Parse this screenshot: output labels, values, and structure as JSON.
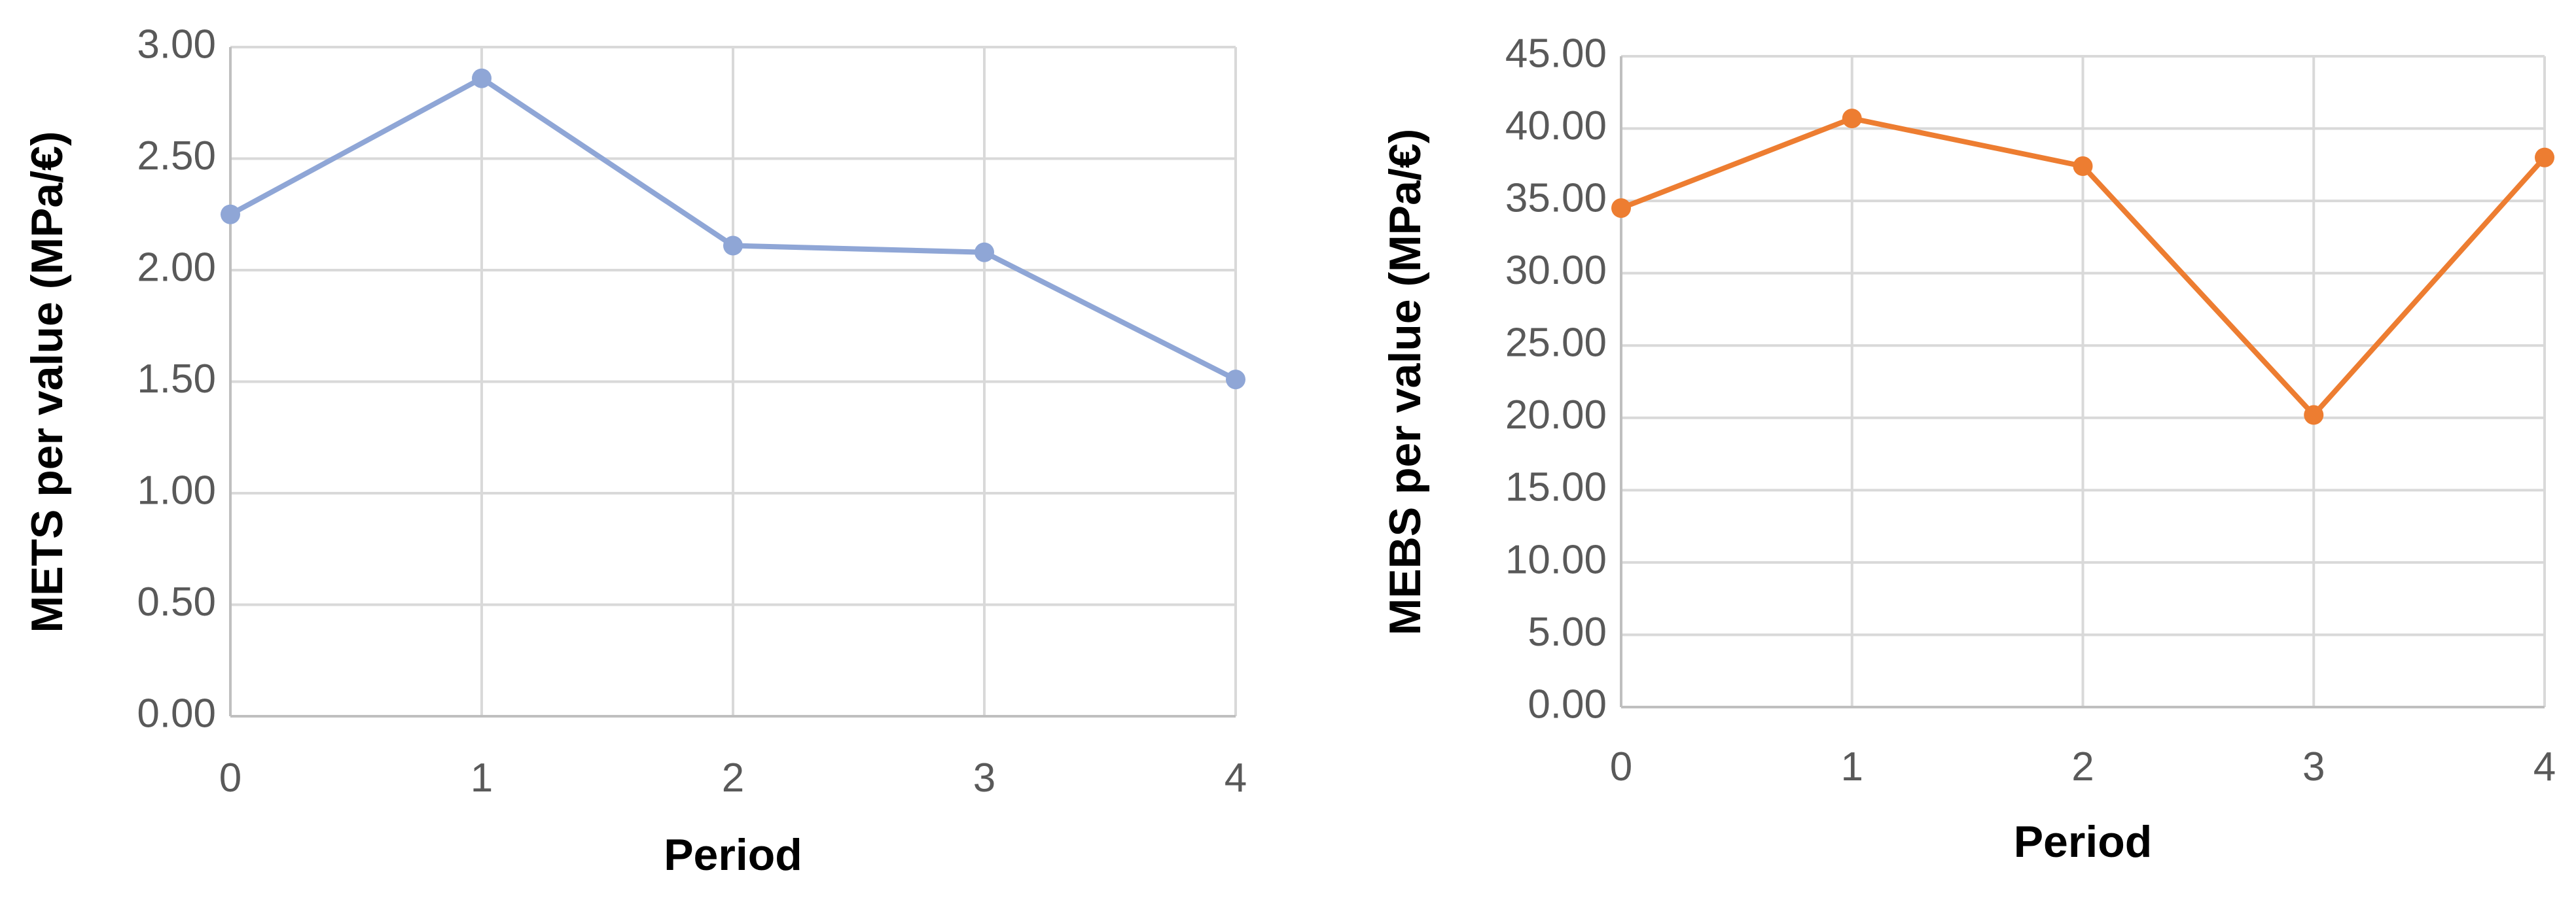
{
  "chart_data": [
    {
      "type": "line",
      "xlabel": "Period",
      "ylabel": "METS per value (MPa/€)",
      "x": [
        0,
        1,
        2,
        3,
        4
      ],
      "x_tick_labels": [
        "0",
        "1",
        "2",
        "3",
        "4"
      ],
      "ylim": [
        0,
        3
      ],
      "y_tick_labels": [
        "0.00",
        "0.50",
        "1.00",
        "1.50",
        "2.00",
        "2.50",
        "3.00"
      ],
      "grid": true,
      "series": [
        {
          "values": [
            2.25,
            2.86,
            2.11,
            2.08,
            1.51
          ],
          "color": "#8fa6d6"
        }
      ]
    },
    {
      "type": "line",
      "xlabel": "Period",
      "ylabel": "MEBS per value (MPa/€)",
      "x": [
        0,
        1,
        2,
        3,
        4
      ],
      "x_tick_labels": [
        "0",
        "1",
        "2",
        "3",
        "4"
      ],
      "ylim": [
        0,
        45
      ],
      "y_tick_labels": [
        "0.00",
        "5.00",
        "10.00",
        "15.00",
        "20.00",
        "25.00",
        "30.00",
        "35.00",
        "40.00",
        "45.00"
      ],
      "grid": true,
      "series": [
        {
          "values": [
            34.5,
            40.7,
            37.4,
            20.2,
            38.0
          ],
          "color": "#ed7d31"
        }
      ]
    }
  ]
}
